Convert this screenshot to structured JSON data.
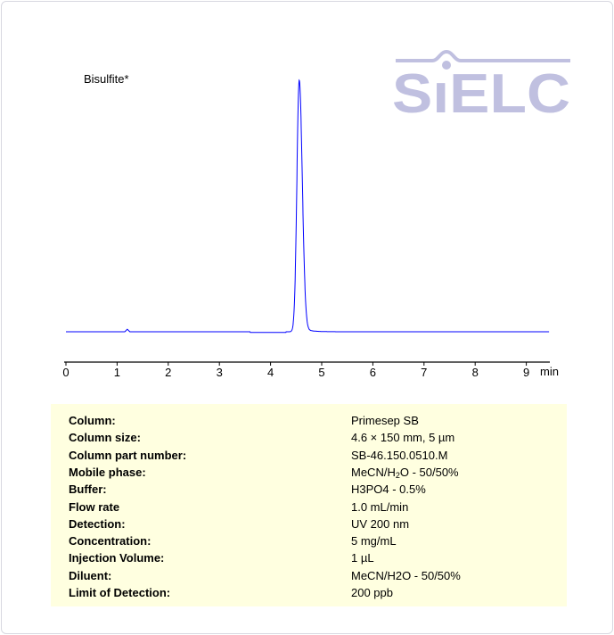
{
  "chart_data": {
    "type": "line",
    "title": "",
    "annotation": "Bisulfite*",
    "xlabel": "min",
    "ylabel": "",
    "xlim": [
      0,
      9.45
    ],
    "xticks": [
      0,
      1,
      2,
      3,
      4,
      5,
      6,
      7,
      8,
      9
    ],
    "grid": false,
    "legend": "none",
    "line_color": "#0000ff",
    "series": [
      {
        "x": [
          0,
          1.15,
          1.2,
          1.25,
          3.6,
          4.3,
          4.42,
          4.5,
          4.56,
          4.62,
          4.7,
          4.8,
          5.0,
          9.45
        ],
        "y": [
          0,
          0,
          1,
          0,
          -0.3,
          0,
          15,
          80,
          100,
          75,
          15,
          3,
          0.3,
          0
        ]
      }
    ],
    "peaks": [
      {
        "name": "Bisulfite*",
        "retention_time": 4.56
      }
    ]
  },
  "logo": {
    "text": "SIELC",
    "color": "#c0c0e0"
  },
  "conditions": [
    {
      "label": "Column:",
      "value": "Primesep SB"
    },
    {
      "label": "Column size:",
      "value": "4.6 × 150 mm, 5 µm"
    },
    {
      "label": "Column part number:",
      "value": "SB-46.150.0510.M"
    },
    {
      "label": "Mobile phase:",
      "value": "MeCN/H2O - 50/50%"
    },
    {
      "label": "Buffer:",
      "value": "H3PO4 - 0.5%"
    },
    {
      "label": "Flow rate",
      "value": "1.0 mL/min"
    },
    {
      "label": "Detection:",
      "value": " UV 200 nm"
    },
    {
      "label": "Concentration:",
      "value": "5 mg/mL"
    },
    {
      "label": "Injection Volume:",
      "value": "1 µL"
    },
    {
      "label": "Diluent:",
      "value": "MeCN/H2O - 50/50%"
    },
    {
      "label": "Limit of Detection:",
      "value": "200 ppb"
    }
  ]
}
